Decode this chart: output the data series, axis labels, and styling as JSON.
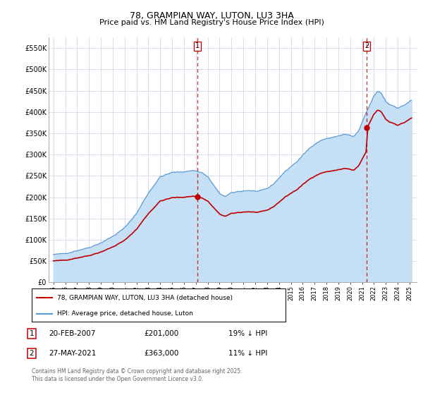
{
  "title": "78, GRAMPIAN WAY, LUTON, LU3 3HA",
  "subtitle": "Price paid vs. HM Land Registry's House Price Index (HPI)",
  "ylim": [
    0,
    575000
  ],
  "yticks": [
    0,
    50000,
    100000,
    150000,
    200000,
    250000,
    300000,
    350000,
    400000,
    450000,
    500000,
    550000
  ],
  "ytick_labels": [
    "£0",
    "£50K",
    "£100K",
    "£150K",
    "£200K",
    "£250K",
    "£300K",
    "£350K",
    "£400K",
    "£450K",
    "£500K",
    "£550K"
  ],
  "hpi_color": "#5b9bd5",
  "hpi_fill_color": "#c5dff5",
  "price_color": "#c00000",
  "marker1_date": 2007.12,
  "marker2_date": 2021.4,
  "marker1_price": 201000,
  "marker2_price": 363000,
  "legend_label_price": "78, GRAMPIAN WAY, LUTON, LU3 3HA (detached house)",
  "legend_label_hpi": "HPI: Average price, detached house, Luton",
  "table_row1": [
    "1",
    "20-FEB-2007",
    "£201,000",
    "19% ↓ HPI"
  ],
  "table_row2": [
    "2",
    "27-MAY-2021",
    "£363,000",
    "11% ↓ HPI"
  ],
  "footer": "Contains HM Land Registry data © Crown copyright and database right 2025.\nThis data is licensed under the Open Government Licence v3.0.",
  "background_color": "#ffffff",
  "grid_color": "#d0d8e8"
}
